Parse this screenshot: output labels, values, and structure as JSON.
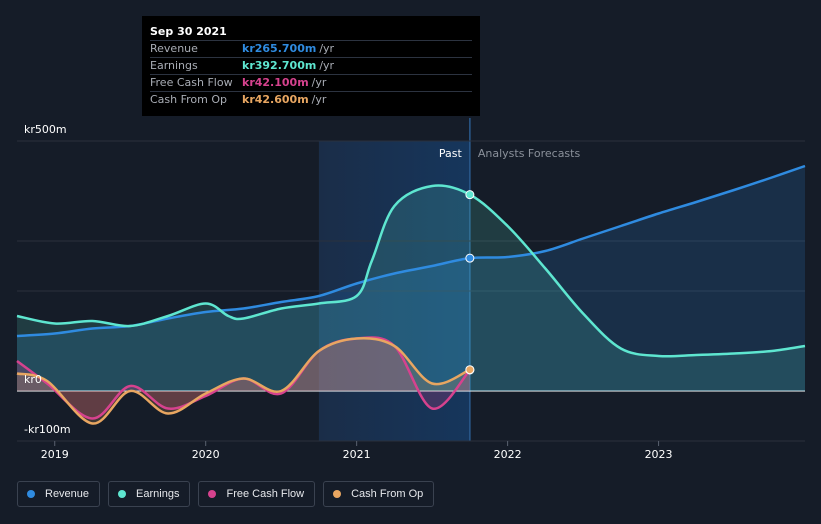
{
  "tooltip": {
    "date": "Sep 30 2021",
    "rows": [
      {
        "label": "Revenue",
        "value": "kr265.700m",
        "unit": "/yr",
        "color": "#2f8be0"
      },
      {
        "label": "Earnings",
        "value": "kr392.700m",
        "unit": "/yr",
        "color": "#5ee6d0"
      },
      {
        "label": "Free Cash Flow",
        "value": "kr42.100m",
        "unit": "/yr",
        "color": "#d6428e"
      },
      {
        "label": "Cash From Op",
        "value": "kr42.600m",
        "unit": "/yr",
        "color": "#e8a661"
      }
    ]
  },
  "legend": [
    {
      "label": "Revenue",
      "color": "#2f8be0"
    },
    {
      "label": "Earnings",
      "color": "#5ee6d0"
    },
    {
      "label": "Free Cash Flow",
      "color": "#d6428e"
    },
    {
      "label": "Cash From Op",
      "color": "#e8a661"
    }
  ],
  "chart_data": {
    "type": "line",
    "title": "",
    "y_unit": "kr (millions)",
    "ylim": [
      -100,
      500
    ],
    "xlim": [
      2018.75,
      2023.97
    ],
    "y_tick_labels": [
      {
        "value": 500,
        "label": "kr500m"
      },
      {
        "value": 0,
        "label": "kr0"
      },
      {
        "value": -100,
        "label": "-kr100m"
      }
    ],
    "x_ticks": [
      2019,
      2020,
      2021,
      2022,
      2023
    ],
    "x_tick_labels": [
      "2019",
      "2020",
      "2021",
      "2022",
      "2023"
    ],
    "past_label": "Past",
    "forecast_label": "Analysts Forecasts",
    "past_end": 2021.75,
    "highlight_start": 2020.75,
    "series": [
      {
        "name": "Revenue",
        "color": "#2f8be0",
        "x": [
          2018.75,
          2019.0,
          2019.25,
          2019.5,
          2019.75,
          2020.0,
          2020.25,
          2020.5,
          2020.75,
          2021.0,
          2021.25,
          2021.5,
          2021.75,
          2022.0,
          2022.25,
          2022.5,
          2022.75,
          2023.0,
          2023.25,
          2023.5,
          2023.75,
          2023.97
        ],
        "y": [
          110,
          115,
          125,
          130,
          145,
          158,
          165,
          178,
          190,
          215,
          235,
          250,
          265.7,
          268,
          280,
          305,
          330,
          355,
          378,
          402,
          427,
          450
        ]
      },
      {
        "name": "Earnings",
        "color": "#5ee6d0",
        "x": [
          2018.75,
          2019.0,
          2019.25,
          2019.5,
          2019.75,
          2020.0,
          2020.15,
          2020.25,
          2020.5,
          2020.75,
          2021.0,
          2021.1,
          2021.25,
          2021.5,
          2021.75,
          2022.0,
          2022.25,
          2022.5,
          2022.75,
          2023.0,
          2023.25,
          2023.5,
          2023.75,
          2023.97
        ],
        "y": [
          150,
          135,
          140,
          130,
          150,
          175,
          150,
          145,
          165,
          175,
          190,
          260,
          370,
          410,
          392.7,
          330,
          245,
          155,
          85,
          70,
          72,
          75,
          80,
          90
        ]
      },
      {
        "name": "Free Cash Flow",
        "color": "#d6428e",
        "x": [
          2018.75,
          2018.95,
          2019.25,
          2019.5,
          2019.75,
          2020.0,
          2020.25,
          2020.5,
          2020.75,
          2021.0,
          2021.25,
          2021.5,
          2021.75
        ],
        "y": [
          60,
          15,
          -55,
          10,
          -35,
          -10,
          25,
          -5,
          80,
          105,
          90,
          -35,
          42.1
        ]
      },
      {
        "name": "Cash From Op",
        "color": "#e8a661",
        "x": [
          2018.75,
          2018.95,
          2019.25,
          2019.5,
          2019.75,
          2020.0,
          2020.25,
          2020.5,
          2020.75,
          2021.0,
          2021.25,
          2021.5,
          2021.75
        ],
        "y": [
          35,
          20,
          -65,
          0,
          -45,
          -5,
          25,
          0,
          80,
          105,
          90,
          15,
          42.6
        ]
      }
    ]
  }
}
